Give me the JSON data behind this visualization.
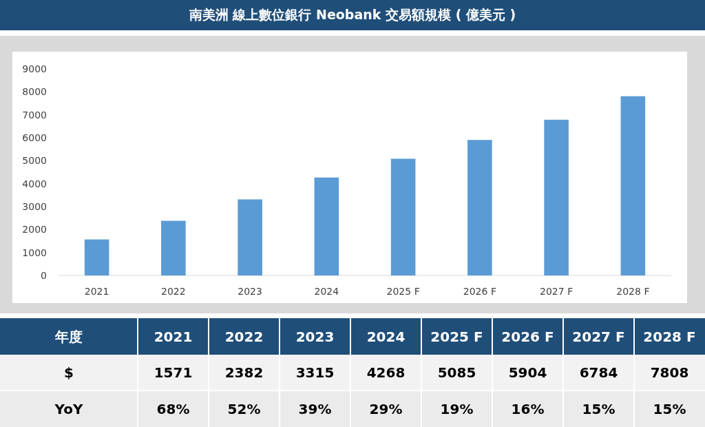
{
  "chart_data": {
    "type": "bar",
    "title": "南美洲 線上數位銀行 Neobank 交易額規模 ( 億美元 )",
    "categories": [
      "2021",
      "2022",
      "2023",
      "2024",
      "2025 F",
      "2026 F",
      "2027 F",
      "2028 F"
    ],
    "values": [
      1571,
      2382,
      3315,
      4268,
      5085,
      5904,
      6784,
      7808
    ],
    "color": "#5b9bd5",
    "ylim": [
      0,
      9000
    ],
    "yticks": [
      0,
      1000,
      2000,
      3000,
      4000,
      5000,
      6000,
      7000,
      8000,
      9000
    ],
    "grid": false,
    "annotations": [
      "年度",
      "$",
      "YoY",
      "1571",
      "2382",
      "3315",
      "4268",
      "5085",
      "5904",
      "6784",
      "7808",
      "68%",
      "52%",
      "39%",
      "29%",
      "19%",
      "16%",
      "15%",
      "15%"
    ]
  }
}
